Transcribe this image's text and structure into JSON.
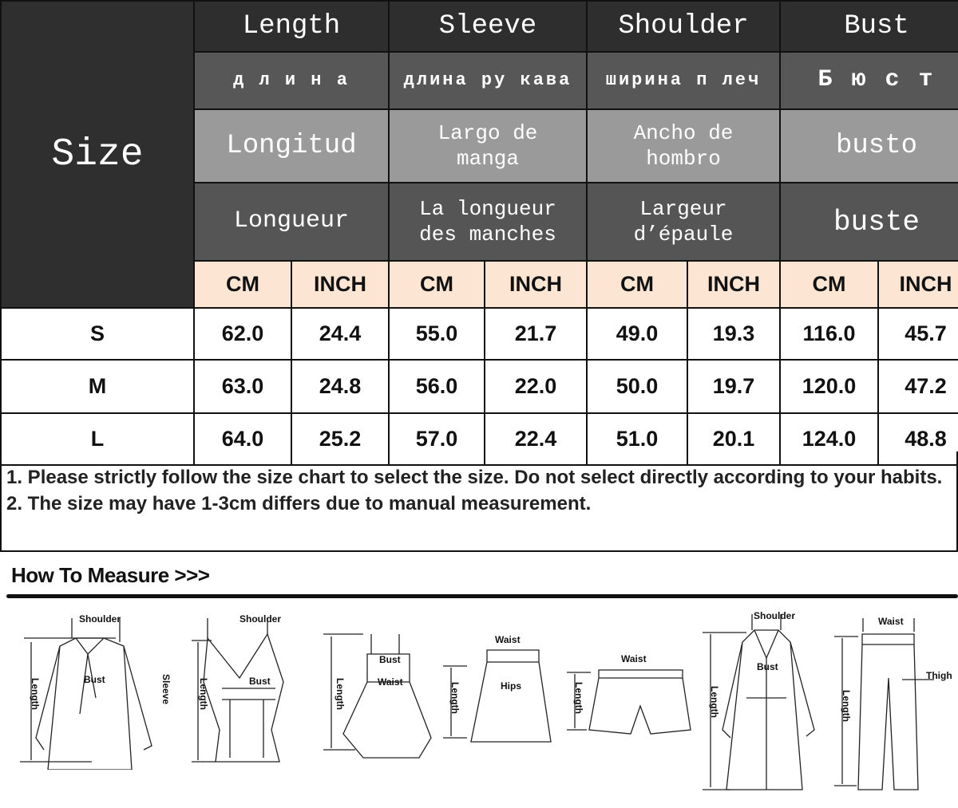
{
  "header": {
    "size_label": "Size",
    "columns": [
      {
        "en": "Length",
        "ru": "д л и н а",
        "es": "Longitud",
        "fr": "Longueur"
      },
      {
        "en": "Sleeve",
        "ru": "длина ру кава",
        "es": "Largo de manga",
        "fr": "La longueur des manches"
      },
      {
        "en": "Shoulder",
        "ru": "ширина п леч",
        "es": "Ancho de hombro",
        "fr": "Largeur d’épaule"
      },
      {
        "en": "Bust",
        "ru": "Б ю с т",
        "es": "busto",
        "fr": "buste"
      }
    ],
    "units": [
      "CM",
      "INCH",
      "CM",
      "INCH",
      "CM",
      "INCH",
      "CM",
      "INCH"
    ]
  },
  "rows": [
    {
      "size": "S",
      "values": [
        "62.0",
        "24.4",
        "55.0",
        "21.7",
        "49.0",
        "19.3",
        "116.0",
        "45.7"
      ]
    },
    {
      "size": "M",
      "values": [
        "63.0",
        "24.8",
        "56.0",
        "22.0",
        "50.0",
        "19.7",
        "120.0",
        "47.2"
      ]
    },
    {
      "size": "L",
      "values": [
        "64.0",
        "25.2",
        "57.0",
        "22.4",
        "51.0",
        "20.1",
        "124.0",
        "48.8"
      ]
    }
  ],
  "notes": [
    "1. Please strictly follow the size chart to select the size. Do not select directly according to your habits.",
    "2. The size may have 1-3cm differs due to manual measurement."
  ],
  "measure": {
    "title": "How To Measure >>>",
    "labels": {
      "shoulder": "Shoulder",
      "bust": "Bust",
      "sleeve": "Sleeve",
      "length": "Length",
      "waist": "Waist",
      "hips": "Hips",
      "thigh": "Thigh"
    }
  },
  "colors": {
    "dark": "#2f2f2f",
    "mid": "#575757",
    "light": "#9a9a9a",
    "unit_bg": "#fde5d4"
  }
}
